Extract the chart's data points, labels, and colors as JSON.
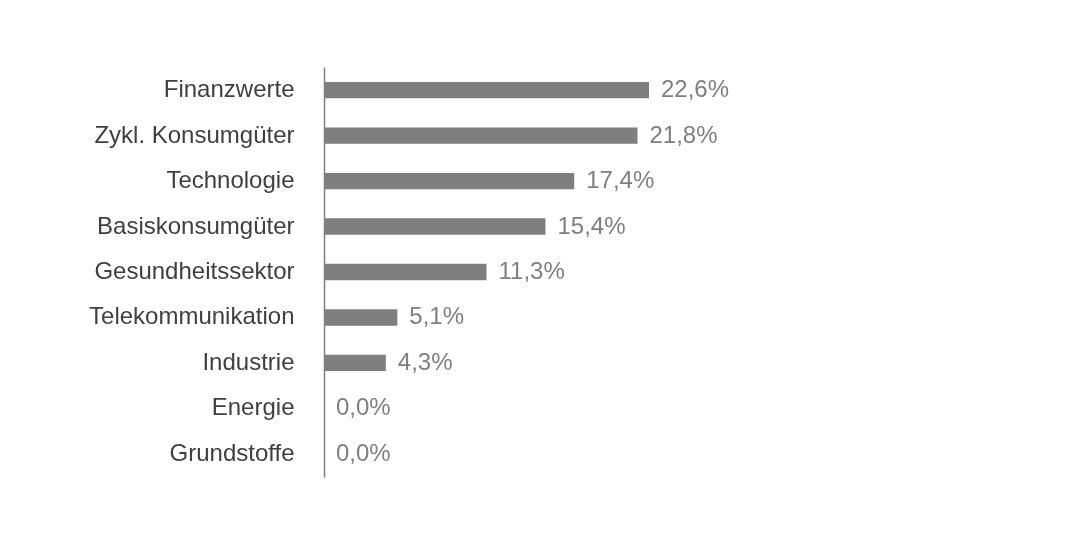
{
  "chart_data": {
    "type": "bar",
    "orientation": "horizontal",
    "categories": [
      "Finanzwerte",
      "Zykl. Konsumgüter",
      "Technologie",
      "Basiskonsumgüter",
      "Gesundheitssektor",
      "Telekommunikation",
      "Industrie",
      "Energie",
      "Grundstoffe"
    ],
    "values": [
      22.6,
      21.8,
      17.4,
      15.4,
      11.3,
      5.1,
      4.3,
      0.0,
      0.0
    ],
    "value_labels": [
      "22,6%",
      "21,8%",
      "17,4%",
      "15,4%",
      "11,3%",
      "5,1%",
      "4,3%",
      "0,0%",
      "0,0%"
    ],
    "color": "#7f7f7f"
  }
}
